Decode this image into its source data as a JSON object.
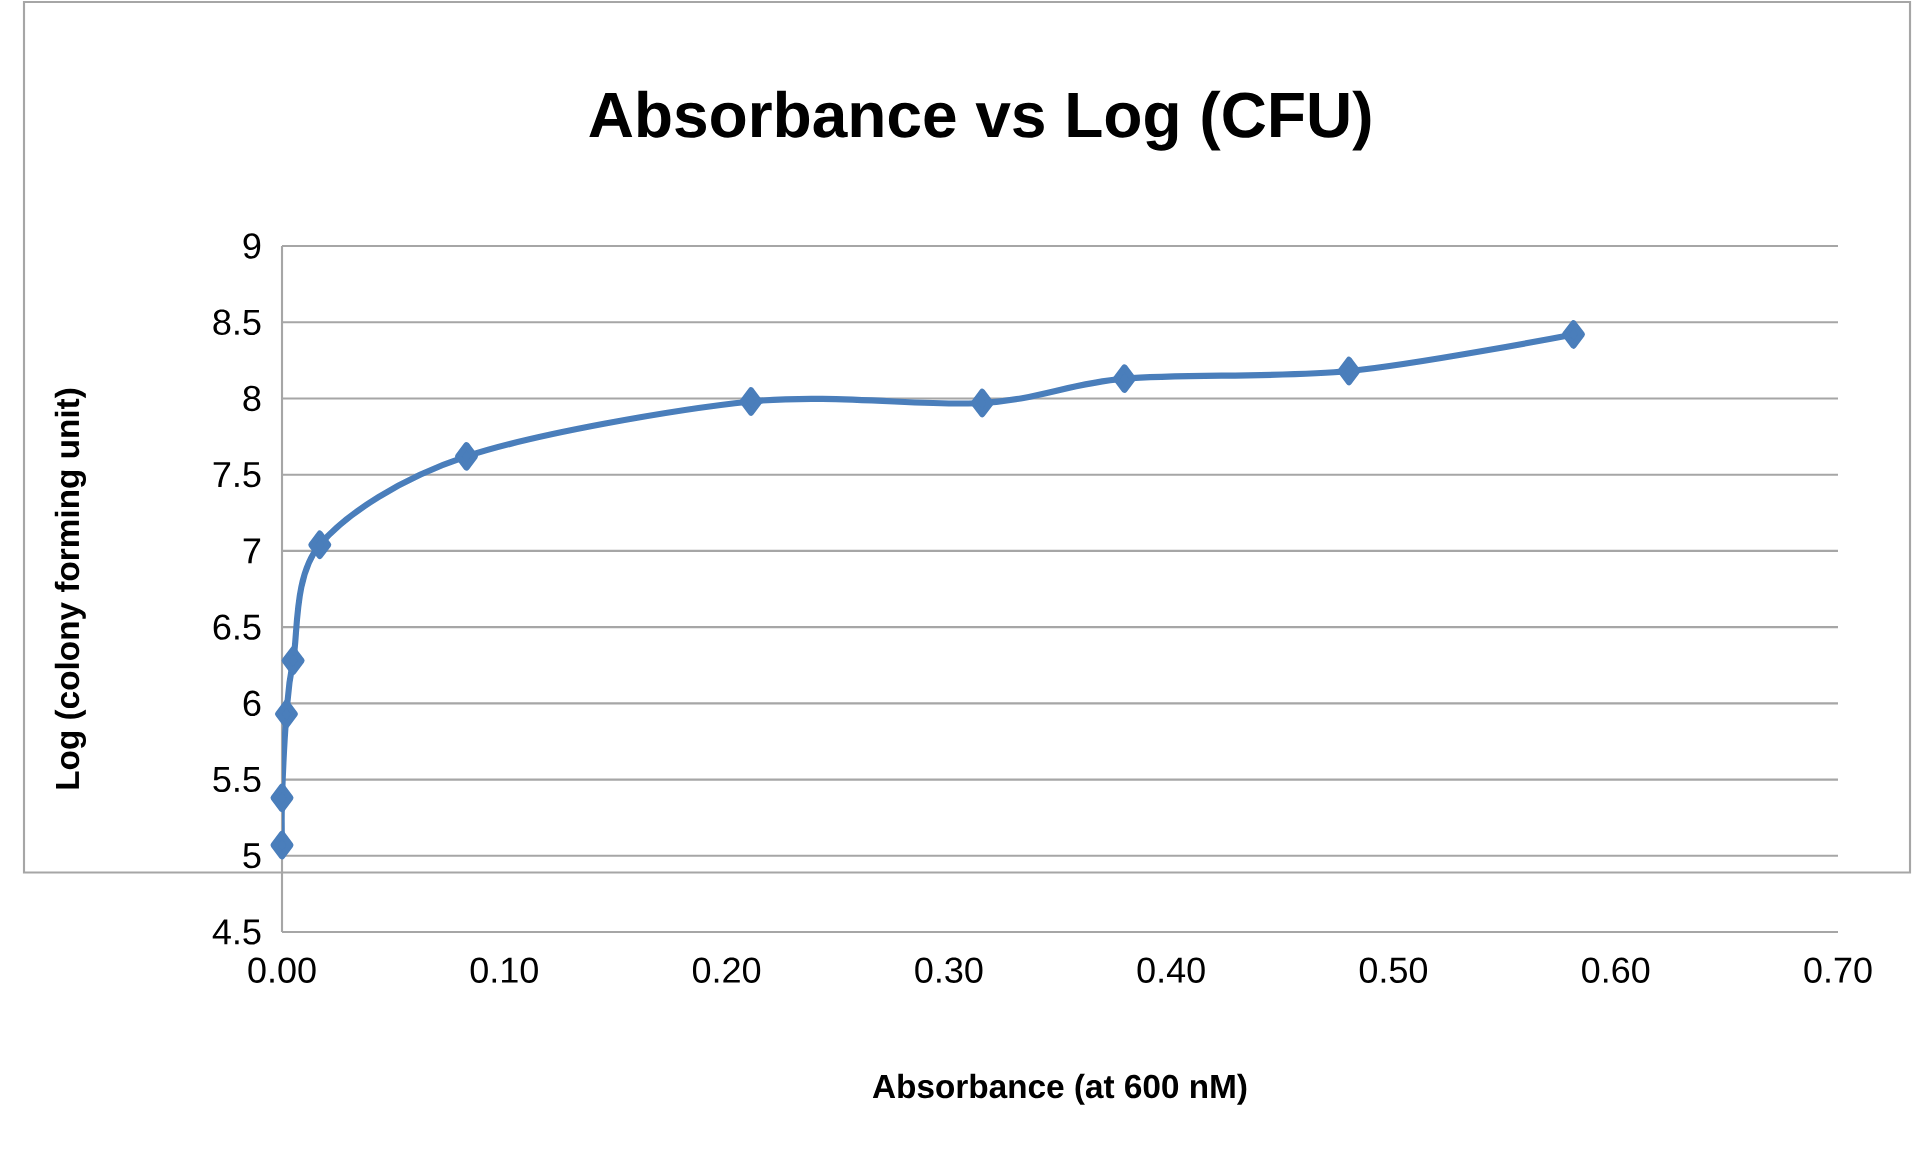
{
  "chart_data": {
    "type": "line",
    "title": "Absorbance vs Log (CFU)",
    "xlabel": "Absorbance (at 600 nM)",
    "ylabel": "Log (colony forming unit)",
    "x": [
      0.0,
      0.0,
      0.002,
      0.005,
      0.017,
      0.083,
      0.211,
      0.315,
      0.379,
      0.48,
      0.581
    ],
    "series": [
      {
        "color": "#4a7ebb",
        "values": [
          5.07,
          5.38,
          5.93,
          6.28,
          7.04,
          7.62,
          7.98,
          7.97,
          8.13,
          8.18,
          8.42
        ]
      }
    ],
    "xlim": [
      0,
      0.7
    ],
    "xticks": [
      {
        "value": 0,
        "label": "0.00"
      },
      {
        "value": 0.1,
        "label": "0.10"
      },
      {
        "value": 0.2,
        "label": "0.20"
      },
      {
        "value": 0.3,
        "label": "0.30"
      },
      {
        "value": 0.4,
        "label": "0.40"
      },
      {
        "value": 0.5,
        "label": "0.50"
      },
      {
        "value": 0.6,
        "label": "0.60"
      },
      {
        "value": 0.7,
        "label": "0.70"
      }
    ],
    "ylim": [
      4.5,
      9
    ],
    "yticks": [
      4.5,
      5,
      5.5,
      6,
      6.5,
      7,
      7.5,
      8,
      8.5,
      9
    ],
    "grid": "y",
    "marker": "diamond",
    "line_style": "solid"
  }
}
